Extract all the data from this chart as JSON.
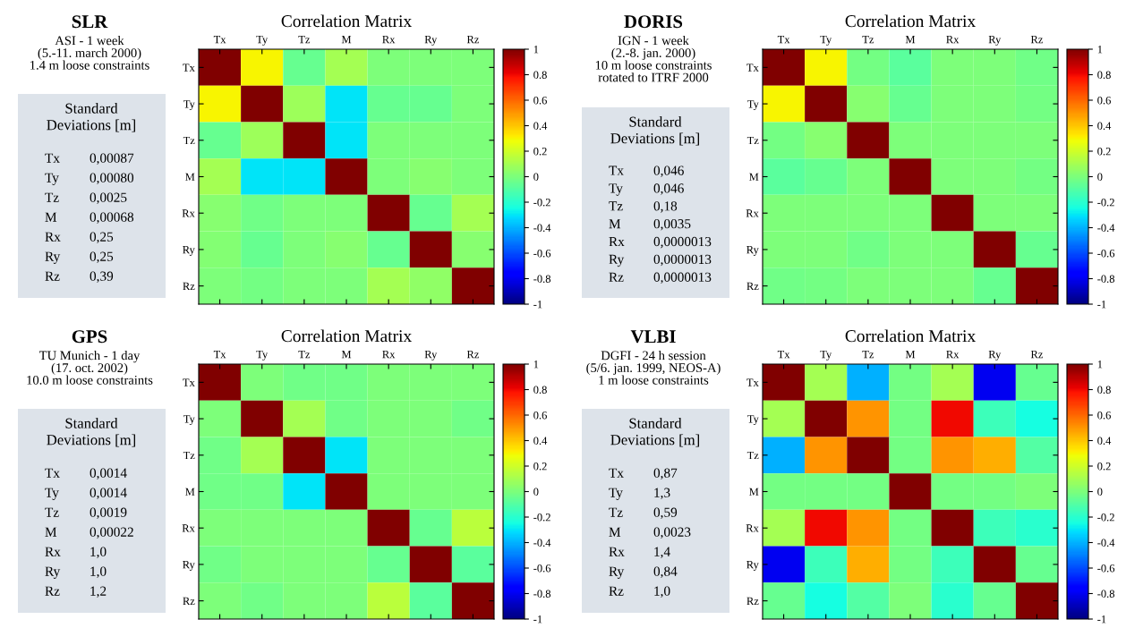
{
  "chart_data": [
    {
      "type": "other",
      "title": "SLR",
      "subtitle": "ASI - 1 week\n(5.-11. march 2000)\n1.4 m loose constraints",
      "annotations": [
        "Standard\nDeviations [m]",
        "Tx",
        "0,00087",
        "Ty",
        "0,00080",
        "Tz",
        "0,0025",
        "M",
        "0,00068",
        "Rx",
        "0,25",
        "Ry",
        "0,25",
        "Rz",
        "0,39"
      ]
    },
    {
      "type": "heatmap",
      "title": "Correlation Matrix",
      "categories": [
        "Tx",
        "Ty",
        "Tz",
        "M",
        "Rx",
        "Ry",
        "Rz"
      ],
      "y_categories": [
        "Tx",
        "Ty",
        "Tz",
        "M",
        "Rx",
        "Ry",
        "Rz"
      ],
      "cells": [
        [
          1,
          0.3,
          -0.05,
          0.1,
          0,
          0,
          0
        ],
        [
          0.3,
          1,
          0.08,
          -0.3,
          -0.05,
          -0.05,
          0
        ],
        [
          -0.05,
          0.08,
          1,
          -0.3,
          0,
          0,
          0
        ],
        [
          0.1,
          -0.3,
          -0.3,
          1,
          0,
          0.03,
          0
        ],
        [
          0.03,
          -0.03,
          0,
          0,
          1,
          -0.05,
          0.1
        ],
        [
          0.02,
          -0.05,
          0,
          0.03,
          -0.05,
          1,
          0.03
        ],
        [
          0,
          -0.02,
          0,
          0,
          0.1,
          0.05,
          1
        ]
      ],
      "clim": [
        -1,
        1
      ],
      "cticks": [
        {
          "value": 1,
          "label": "1"
        },
        {
          "value": 0.8,
          "label": "0.8"
        },
        {
          "value": 0.6,
          "label": "0.6"
        },
        {
          "value": 0.4,
          "label": "0.4"
        },
        {
          "value": 0.2,
          "label": "0.2"
        },
        {
          "value": 0,
          "label": "0"
        },
        {
          "value": -0.2,
          "label": "-0.2"
        },
        {
          "value": -0.4,
          "label": "-0.4"
        },
        {
          "value": -0.6,
          "label": "-0.6"
        },
        {
          "value": -0.8,
          "label": "-0.8"
        },
        {
          "value": -1,
          "label": "-1"
        }
      ]
    },
    {
      "type": "other",
      "title": "DORIS",
      "subtitle": "IGN - 1 week\n(2.-8. jan. 2000)\n10 m loose constraints\nrotated to ITRF 2000",
      "annotations": [
        "Standard\nDeviations [m]",
        "Tx",
        "0,046",
        "Ty",
        "0,046",
        "Tz",
        "0,18",
        "M",
        "0,0035",
        "Rx",
        "0,0000013",
        "Ry",
        "0,0000013",
        "Rz",
        "0,0000013"
      ]
    },
    {
      "type": "heatmap",
      "title": "Correlation Matrix",
      "categories": [
        "Tx",
        "Ty",
        "Tz",
        "M",
        "Rx",
        "Ry",
        "Rz"
      ],
      "y_categories": [
        "Tx",
        "Ty",
        "Tz",
        "M",
        "Rx",
        "Ry",
        "Rz"
      ],
      "cells": [
        [
          1,
          0.3,
          -0.02,
          -0.08,
          0,
          0,
          -0.03
        ],
        [
          0.3,
          1,
          0.03,
          -0.05,
          0,
          0,
          -0.02
        ],
        [
          -0.02,
          0.03,
          1,
          0,
          0,
          0,
          0
        ],
        [
          -0.08,
          -0.05,
          0,
          1,
          0,
          0,
          -0.02
        ],
        [
          0,
          0,
          0,
          0,
          1,
          0,
          0
        ],
        [
          0,
          0,
          -0.03,
          0,
          0,
          1,
          -0.05
        ],
        [
          -0.03,
          -0.02,
          0,
          0,
          0,
          -0.05,
          1
        ]
      ],
      "clim": [
        -1,
        1
      ],
      "cticks": [
        {
          "value": 1,
          "label": "1"
        },
        {
          "value": 0.8,
          "label": "0.8"
        },
        {
          "value": 0.6,
          "label": "0.6"
        },
        {
          "value": 0.4,
          "label": "0.4"
        },
        {
          "value": 0.2,
          "label": "0.2"
        },
        {
          "value": 0,
          "label": "0"
        },
        {
          "value": -0.2,
          "label": "-0.2"
        },
        {
          "value": -0.4,
          "label": "-0.4"
        },
        {
          "value": -0.6,
          "label": "-0.6"
        },
        {
          "value": -0.8,
          "label": "-0.8"
        },
        {
          "value": -1,
          "label": "-1"
        }
      ]
    },
    {
      "type": "other",
      "title": "GPS",
      "subtitle": "TU Munich - 1 day\n(17. oct. 2002)\n10.0 m loose constraints",
      "annotations": [
        "Standard\nDeviations [m]",
        "Tx",
        "0,0014",
        "Ty",
        "0,0014",
        "Tz",
        "0,0019",
        "M",
        "0,00022",
        "Rx",
        "1,0",
        "Ry",
        "1,0",
        "Rz",
        "1,2"
      ]
    },
    {
      "type": "heatmap",
      "title": "Correlation Matrix",
      "categories": [
        "Tx",
        "Ty",
        "Tz",
        "M",
        "Rx",
        "Ry",
        "Rz"
      ],
      "y_categories": [
        "Tx",
        "Ty",
        "Tz",
        "M",
        "Rx",
        "Ry",
        "Rz"
      ],
      "cells": [
        [
          1,
          0,
          -0.03,
          -0.03,
          0,
          0,
          0
        ],
        [
          0,
          1,
          0.1,
          -0.03,
          0,
          0,
          -0.03
        ],
        [
          -0.03,
          0.1,
          1,
          -0.3,
          0,
          0,
          0
        ],
        [
          -0.03,
          -0.03,
          -0.3,
          1,
          0,
          0,
          0
        ],
        [
          0,
          0,
          0,
          0,
          1,
          -0.05,
          0.15
        ],
        [
          -0.03,
          0,
          0,
          0,
          -0.05,
          1,
          -0.08
        ],
        [
          0,
          -0.03,
          0,
          0,
          0.15,
          -0.08,
          1
        ]
      ],
      "clim": [
        -1,
        1
      ],
      "cticks": [
        {
          "value": 1,
          "label": "1"
        },
        {
          "value": 0.8,
          "label": "0.8"
        },
        {
          "value": 0.6,
          "label": "0.6"
        },
        {
          "value": 0.4,
          "label": "0.4"
        },
        {
          "value": 0.2,
          "label": "0.2"
        },
        {
          "value": 0,
          "label": "0"
        },
        {
          "value": -0.2,
          "label": "-0.2"
        },
        {
          "value": -0.4,
          "label": "-0.4"
        },
        {
          "value": -0.6,
          "label": "-0.6"
        },
        {
          "value": -0.8,
          "label": "-0.8"
        },
        {
          "value": -1,
          "label": "-1"
        }
      ]
    },
    {
      "type": "other",
      "title": "VLBI",
      "subtitle": "DGFI - 24 h session\n(5/6. jan. 1999, NEOS-A)\n1 m loose constraints",
      "annotations": [
        "Standard\nDeviations [m]",
        "Tx",
        "0,87",
        "Ty",
        "1,3",
        "Tz",
        "0,59",
        "M",
        "0,0023",
        "Rx",
        "1,4",
        "Ry",
        "0,84",
        "Rz",
        "1,0"
      ]
    },
    {
      "type": "heatmap",
      "title": "Correlation Matrix",
      "categories": [
        "Tx",
        "Ty",
        "Tz",
        "M",
        "Rx",
        "Ry",
        "Rz"
      ],
      "y_categories": [
        "Tx",
        "Ty",
        "Tz",
        "M",
        "Rx",
        "Ry",
        "Rz"
      ],
      "cells": [
        [
          1,
          0.1,
          -0.4,
          -0.02,
          0.1,
          -0.8,
          -0.05
        ],
        [
          0.1,
          1,
          0.5,
          -0.02,
          0.8,
          -0.15,
          -0.25
        ],
        [
          -0.4,
          0.5,
          1,
          -0.02,
          0.5,
          0.45,
          -0.1
        ],
        [
          -0.02,
          -0.02,
          -0.02,
          1,
          -0.02,
          -0.02,
          0
        ],
        [
          0.1,
          0.8,
          0.5,
          -0.02,
          1,
          -0.15,
          -0.2
        ],
        [
          -0.8,
          -0.15,
          0.45,
          -0.02,
          -0.15,
          1,
          -0.05
        ],
        [
          -0.05,
          -0.25,
          -0.1,
          0,
          -0.2,
          -0.05,
          1
        ]
      ],
      "clim": [
        -1,
        1
      ],
      "cticks": [
        {
          "value": 1,
          "label": "1"
        },
        {
          "value": 0.8,
          "label": "0.8"
        },
        {
          "value": 0.6,
          "label": "0.6"
        },
        {
          "value": 0.4,
          "label": "0.4"
        },
        {
          "value": 0.2,
          "label": "0.2"
        },
        {
          "value": 0,
          "label": "0"
        },
        {
          "value": -0.2,
          "label": "-0.2"
        },
        {
          "value": -0.4,
          "label": "-0.4"
        },
        {
          "value": -0.6,
          "label": "-0.6"
        },
        {
          "value": -0.8,
          "label": "-0.8"
        },
        {
          "value": -1,
          "label": "-1"
        }
      ]
    }
  ]
}
